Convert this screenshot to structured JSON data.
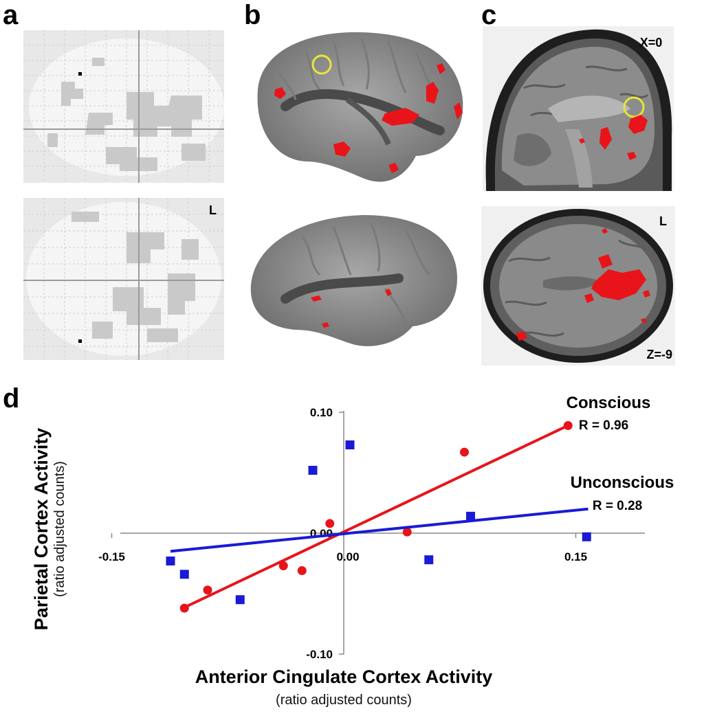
{
  "panels": {
    "a": "a",
    "b": "b",
    "c": "c",
    "d": "d"
  },
  "glass_brain": {
    "bottom_label": "L"
  },
  "mri": {
    "sagittal_label": "X=0",
    "axial_top_label": "L",
    "axial_label": "Z=-9"
  },
  "colors": {
    "activation": "#e8141a",
    "circle": "#e6e63a",
    "conscious": "#e8141a",
    "unconscious": "#1a1ad6"
  },
  "chart_data": {
    "type": "scatter",
    "xlabel": "Anterior Cingulate Cortex Activity",
    "xlabel_sub": "(ratio adjusted counts)",
    "ylabel": "Parietal Cortex Activity",
    "ylabel_sub": "(ratio adjusted counts)",
    "xlim": [
      -0.2,
      0.2
    ],
    "ylim": [
      -0.1,
      0.1
    ],
    "x_ticks": [
      "-0.15",
      "0.00",
      "0.15"
    ],
    "y_ticks": [
      "0.10",
      "0.00",
      "-0.10"
    ],
    "series": [
      {
        "name": "Conscious",
        "stat": "R = 0.96",
        "marker": "circle",
        "points": [
          [
            -0.103,
            -0.062
          ],
          [
            -0.088,
            -0.047
          ],
          [
            -0.039,
            -0.027
          ],
          [
            -0.027,
            -0.031
          ],
          [
            -0.009,
            0.008
          ],
          [
            0.041,
            0.001
          ],
          [
            0.078,
            0.067
          ],
          [
            0.145,
            0.089
          ]
        ],
        "fit": [
          [
            -0.104,
            -0.062
          ],
          [
            0.145,
            0.089
          ]
        ]
      },
      {
        "name": "Unconscious",
        "stat": "R = 0.28",
        "marker": "square",
        "points": [
          [
            -0.112,
            -0.023
          ],
          [
            -0.103,
            -0.034
          ],
          [
            -0.067,
            -0.055
          ],
          [
            -0.02,
            0.052
          ],
          [
            0.004,
            0.073
          ],
          [
            0.055,
            -0.022
          ],
          [
            0.082,
            0.014
          ],
          [
            0.157,
            -0.003
          ]
        ],
        "fit": [
          [
            -0.112,
            -0.015
          ],
          [
            0.158,
            0.02
          ]
        ]
      }
    ]
  }
}
